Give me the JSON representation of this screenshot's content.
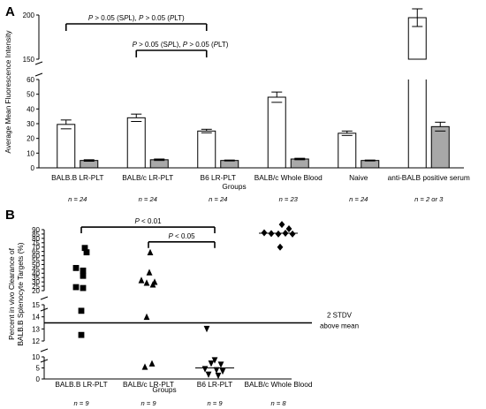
{
  "chart_data": [
    {
      "panel": "A",
      "type": "bar",
      "ylabel": "Average Mean Fluorescence Intensity",
      "xlabel": "Groups",
      "y_axis_break": {
        "lower": [
          0,
          60
        ],
        "upper": [
          150,
          200
        ]
      },
      "yticks_lower": [
        "0",
        "10",
        "20",
        "30",
        "40",
        "50",
        "60"
      ],
      "yticks_upper": [
        "150",
        "200"
      ],
      "categories": [
        "BALB.B LR-PLT",
        "BALB/c LR-PLT",
        "B6 LR-PLT",
        "BALB/c Whole Blood",
        "Naive",
        "anti-BALB positive serum"
      ],
      "n_labels": [
        "n = 24",
        "n = 24",
        "n = 24",
        "n = 23",
        "n = 24",
        "n = 2 or 3"
      ],
      "series": [
        {
          "color": "#ffffff",
          "values": [
            29.5,
            34,
            25,
            48,
            23.5,
            197
          ],
          "errors": [
            3,
            2.5,
            1.2,
            3.5,
            1.5,
            10
          ]
        },
        {
          "color": "#a8a8a8",
          "values": [
            5,
            5.5,
            5,
            6,
            5,
            28
          ],
          "errors": [
            0.5,
            0.5,
            0.3,
            0.5,
            0.3,
            3
          ]
        }
      ],
      "annotations": [
        {
          "text": "P > 0.05 (SPL), P > 0.05 (PLT)",
          "from": "BALB.B LR-PLT",
          "to": "B6 LR-PLT",
          "level": 190
        },
        {
          "text": "P > 0.05 (SPL), P > 0.05 (PLT)",
          "from": "BALB/c LR-PLT",
          "to": "B6 LR-PLT",
          "level": 160
        }
      ]
    },
    {
      "panel": "B",
      "type": "scatter",
      "ylabel": [
        "Percent in vivo Clearance of",
        "BALB.B Splenocyte Targets (%)"
      ],
      "xlabel": "Groups",
      "y_axis_break": {
        "lower": [
          0,
          10
        ],
        "middle": [
          12,
          15
        ],
        "upper": [
          20,
          90
        ]
      },
      "yticks_lower": [
        "0",
        "5",
        "10"
      ],
      "yticks_middle": [
        "12",
        "13",
        "14",
        "15"
      ],
      "yticks_upper": [
        "20",
        "25",
        "30",
        "35",
        "40",
        "45",
        "50",
        "55",
        "60",
        "65",
        "70",
        "75",
        "80",
        "85",
        "90"
      ],
      "categories": [
        "BALB.B LR-PLT",
        "BALB/c LR-PLT",
        "B6 LR-PLT",
        "BALB/c Whole Blood"
      ],
      "n_labels": [
        "n = 9",
        "n = 9",
        "n = 9",
        "n = 8"
      ],
      "reference_line": {
        "value": 13.5,
        "label": [
          "2 STDV",
          "above mean"
        ]
      },
      "groups": [
        {
          "marker": "square",
          "median": null,
          "values": [
            69,
            64,
            46,
            43,
            37,
            24,
            23,
            14.5,
            12.5
          ]
        },
        {
          "marker": "triangle-up",
          "median": null,
          "values": [
            64,
            41,
            32,
            30,
            29,
            27,
            14,
            7,
            5.5
          ]
        },
        {
          "marker": "triangle-down",
          "median": 5,
          "values": [
            13,
            8.5,
            7,
            6.5,
            4.5,
            4,
            3.5,
            2,
            1.5
          ]
        },
        {
          "marker": "diamond",
          "median": 86,
          "values": [
            96,
            91,
            86.5,
            86,
            85.5,
            85,
            85,
            70
          ]
        }
      ],
      "annotations": [
        {
          "text": "P < 0.01",
          "from": "BALB.B LR-PLT",
          "to": "B6 LR-PLT",
          "level": 93
        },
        {
          "text": "P < 0.05",
          "from": "BALB/c LR-PLT",
          "to": "B6 LR-PLT",
          "level": 76
        }
      ]
    }
  ]
}
